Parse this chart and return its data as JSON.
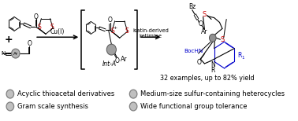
{
  "background_color": "#ffffff",
  "black": "#000000",
  "red": "#cc0000",
  "blue": "#0000cc",
  "gray_fill": "#b0b0b0",
  "gray_edge": "#808080",
  "bullet_items_left": [
    "Acyclic thioacetal derivatives",
    "Gram scale synthesis"
  ],
  "bullet_items_right": [
    "Medium-size sulfur-containing heterocycles",
    "Wide functional group tolerance"
  ],
  "yield_text": "32 examples, up to 82% yield",
  "cu_label": "Cu(I)",
  "int_label": "Int-A",
  "ketimine_line1": "isatin-derived",
  "ketimine_line2": "ketimine",
  "bz_label": "Bz",
  "ar_label": "Ar",
  "bochn_label": "BocHN",
  "n_label": "N",
  "r_label": "R",
  "r1_label": "R",
  "o_label": "O"
}
